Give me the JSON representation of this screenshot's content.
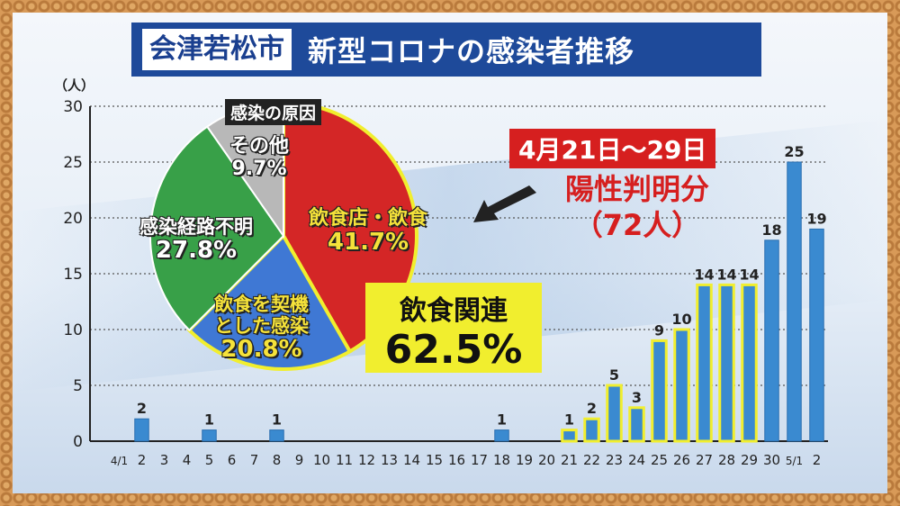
{
  "title": {
    "city": "会津若松市",
    "heading": "新型コロナの感染者推移"
  },
  "chart_data": {
    "type": "bar",
    "unit": "（人）",
    "categories": [
      "4/1",
      "2",
      "3",
      "4",
      "5",
      "6",
      "7",
      "8",
      "9",
      "10",
      "11",
      "12",
      "13",
      "14",
      "15",
      "16",
      "17",
      "18",
      "19",
      "20",
      "21",
      "22",
      "23",
      "24",
      "25",
      "26",
      "27",
      "28",
      "29",
      "30",
      "5/1",
      "2"
    ],
    "values": [
      0,
      2,
      0,
      0,
      1,
      0,
      0,
      1,
      0,
      0,
      0,
      0,
      0,
      0,
      0,
      0,
      0,
      1,
      0,
      0,
      1,
      2,
      5,
      3,
      9,
      10,
      14,
      14,
      14,
      18,
      25,
      19
    ],
    "highlight_range": [
      20,
      28
    ],
    "ylim": [
      0,
      30
    ],
    "yticks": [
      0,
      5,
      10,
      15,
      20,
      25,
      30
    ],
    "colors": {
      "bar": "#3a8ad0",
      "highlight_outline": "#f1ee2e",
      "grid": "#555555"
    }
  },
  "pie": {
    "title": "感染の原因",
    "slices": [
      {
        "label": "飲食店・飲食",
        "value": 41.7,
        "pct": "41.7%",
        "color": "#d42626"
      },
      {
        "label": "飲食を契機とした感染",
        "value": 20.8,
        "pct": "20.8%",
        "color": "#3f78d4"
      },
      {
        "label": "感染経路不明",
        "value": 27.8,
        "pct": "27.8%",
        "color": "#38a048"
      },
      {
        "label": "その他",
        "value": 9.7,
        "pct": "9.7%",
        "color": "#b8b8b8"
      }
    ],
    "labels": {
      "food": [
        "飲食店・飲食",
        "41.7%"
      ],
      "triggered": [
        "飲食を契機",
        "とした感染",
        "20.8%"
      ],
      "unknown": [
        "感染経路不明",
        "27.8%"
      ],
      "other": [
        "その他",
        "9.7%"
      ]
    }
  },
  "annotation": {
    "period": "4月21日〜29日",
    "positive_line1": "陽性判明分",
    "positive_line2": "（72人）",
    "food_related_label": "飲食関連",
    "food_related_pct": "62.5%"
  }
}
